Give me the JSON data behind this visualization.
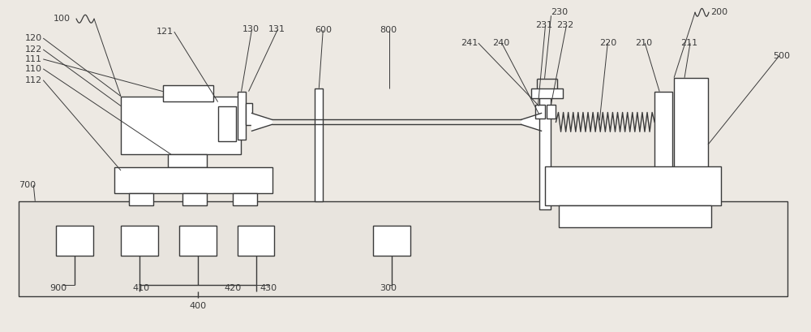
{
  "bg_color": "#ede9e3",
  "line_color": "#3a3a3a",
  "label_color": "#3a3a3a",
  "fig_width": 10.0,
  "fig_height": 4.09,
  "lw": 1.0
}
